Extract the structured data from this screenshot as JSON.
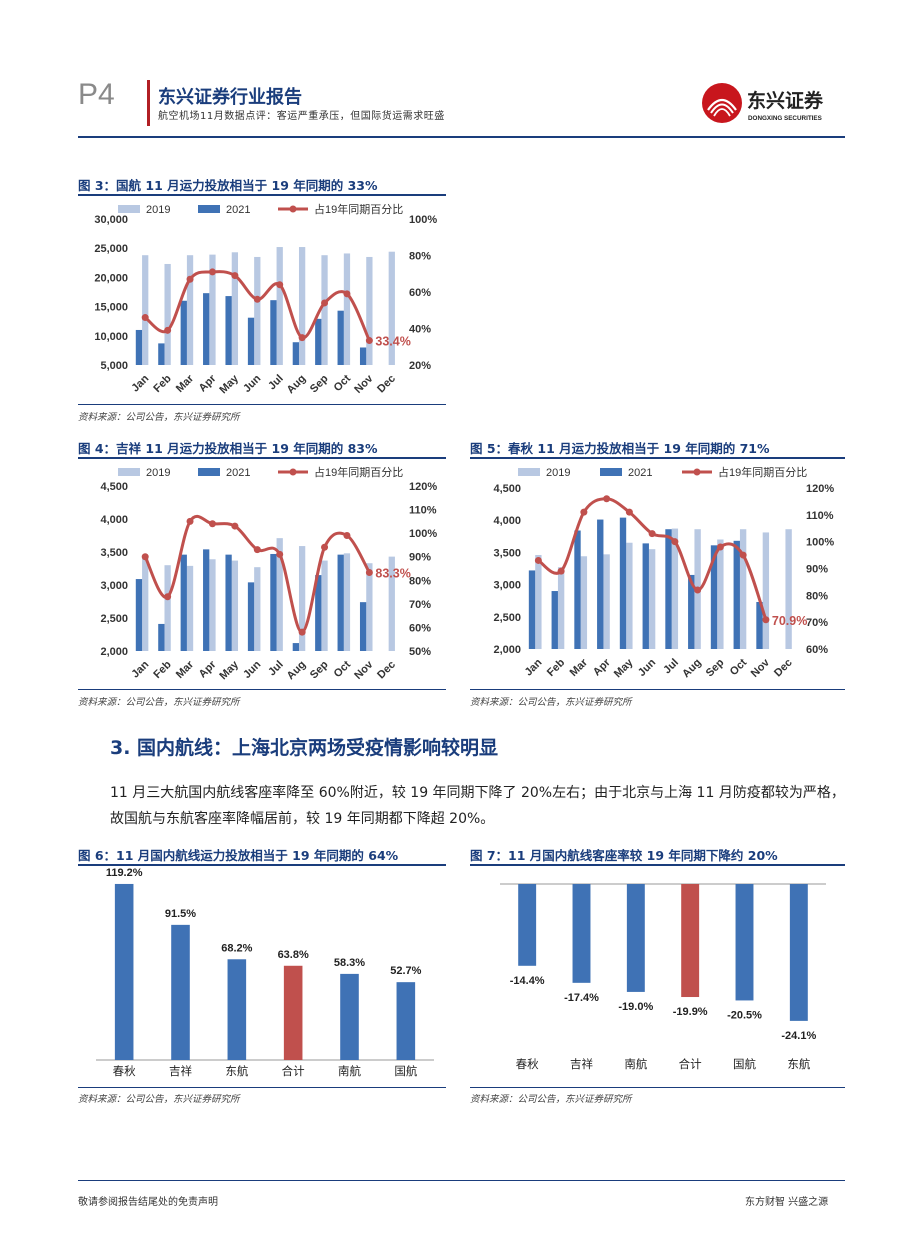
{
  "header": {
    "page_number": "P4",
    "report_title": "东兴证券行业报告",
    "subtitle": "航空机场11月数据点评：客运严重承压，但国际货运需求旺盛",
    "logo_text": "东兴证券",
    "logo_subtext": "DONGXING SECURITIES"
  },
  "colors": {
    "bar2019": "#b8c8e2",
    "bar2021": "#3f72b5",
    "line": "#c0504d",
    "navy": "#1a3d7c",
    "highlight": "#c0504d"
  },
  "fig3": {
    "title": "图 3：国航 11 月运力投放相当于 19 年同期的 33%",
    "source": "资料来源：公司公告，东兴证券研究所",
    "chart_data": {
      "type": "bar",
      "categories": [
        "Jan",
        "Feb",
        "Mar",
        "Apr",
        "May",
        "Jun",
        "Jul",
        "Aug",
        "Sep",
        "Oct",
        "Nov",
        "Dec"
      ],
      "series": [
        {
          "name": "2019",
          "values": [
            23800,
            22300,
            23800,
            23900,
            24300,
            23500,
            25200,
            25200,
            23800,
            24100,
            23500,
            24400
          ]
        },
        {
          "name": "2021",
          "values": [
            11000,
            8700,
            16000,
            17300,
            16800,
            13100,
            16100,
            8900,
            12900,
            14300,
            8000,
            null
          ]
        },
        {
          "name": "占19年同期百分比",
          "axis": "right",
          "values": [
            46,
            39,
            67,
            71,
            69,
            56,
            64,
            35,
            54,
            59,
            33.4,
            null
          ]
        }
      ],
      "ylim": [
        5000,
        30000
      ],
      "y_ticks": [
        "5,000",
        "10,000",
        "15,000",
        "20,000",
        "25,000",
        "30,000"
      ],
      "y2lim": [
        20,
        100
      ],
      "y2_ticks": [
        "20%",
        "40%",
        "60%",
        "80%",
        "100%"
      ],
      "annotation": "33.4%",
      "legend": "top"
    }
  },
  "fig4": {
    "title": "图 4：吉祥 11 月运力投放相当于 19 年同期的 83%",
    "source": "资料来源：公司公告，东兴证券研究所",
    "chart_data": {
      "type": "bar",
      "categories": [
        "Jan",
        "Feb",
        "Mar",
        "Apr",
        "May",
        "Jun",
        "Jul",
        "Aug",
        "Sep",
        "Oct",
        "Nov",
        "Dec"
      ],
      "series": [
        {
          "name": "2019",
          "values": [
            3420,
            3300,
            3290,
            3390,
            3370,
            3270,
            3710,
            3590,
            3370,
            3480,
            3330,
            3430
          ]
        },
        {
          "name": "2021",
          "values": [
            3090,
            2410,
            3460,
            3540,
            3460,
            3040,
            3470,
            2120,
            3150,
            3460,
            2740,
            null
          ]
        },
        {
          "name": "占19年同期百分比",
          "axis": "right",
          "values": [
            90,
            73,
            105,
            104,
            103,
            93,
            91,
            58,
            94,
            99,
            83.3,
            null
          ]
        }
      ],
      "ylim": [
        2000,
        4500
      ],
      "y_ticks": [
        "2,000",
        "2,500",
        "3,000",
        "3,500",
        "4,000",
        "4,500"
      ],
      "y2lim": [
        50,
        120
      ],
      "y2_ticks": [
        "50%",
        "60%",
        "70%",
        "80%",
        "90%",
        "100%",
        "110%",
        "120%"
      ],
      "annotation": "83.3%",
      "legend": "top"
    }
  },
  "fig5": {
    "title": "图 5：春秋 11 月运力投放相当于 19 年同期的 71%",
    "source": "资料来源：公司公告，东兴证券研究所",
    "chart_data": {
      "type": "bar",
      "categories": [
        "Jan",
        "Feb",
        "Mar",
        "Apr",
        "May",
        "Jun",
        "Jul",
        "Aug",
        "Sep",
        "Oct",
        "Nov",
        "Dec"
      ],
      "series": [
        {
          "name": "2019",
          "values": [
            3460,
            3270,
            3440,
            3470,
            3650,
            3550,
            3870,
            3860,
            3700,
            3860,
            3810,
            3860
          ]
        },
        {
          "name": "2021",
          "values": [
            3220,
            2900,
            3840,
            4010,
            4040,
            3640,
            3860,
            3150,
            3610,
            3680,
            2730,
            null
          ]
        },
        {
          "name": "占19年同期百分比",
          "axis": "right",
          "values": [
            93,
            89,
            111,
            116,
            111,
            103,
            100,
            82,
            98,
            95,
            70.9,
            null
          ]
        }
      ],
      "ylim": [
        2000,
        4500
      ],
      "y_ticks": [
        "2,000",
        "2,500",
        "3,000",
        "3,500",
        "4,000",
        "4,500"
      ],
      "y2lim": [
        60,
        120
      ],
      "y2_ticks": [
        "60%",
        "70%",
        "80%",
        "90%",
        "100%",
        "110%",
        "120%"
      ],
      "annotation": "70.9%",
      "legend": "top"
    }
  },
  "section": {
    "title": "3. 国内航线：上海北京两场受疫情影响较明显",
    "paragraph": "11 月三大航国内航线客座率降至 60%附近，较 19 年同期下降了 20%左右；由于北京与上海 11 月防疫都较为严格，故国航与东航客座率降幅居前，较 19 年同期都下降超 20%。"
  },
  "fig6": {
    "title": "图 6：11 月国内航线运力投放相当于 19 年同期的 64%",
    "source": "资料来源：公司公告，东兴证券研究所",
    "chart_data": {
      "type": "bar",
      "categories": [
        "春秋",
        "吉祥",
        "东航",
        "合计",
        "南航",
        "国航"
      ],
      "values": [
        119.2,
        91.5,
        68.2,
        63.8,
        58.3,
        52.7
      ],
      "labels": [
        "119.2%",
        "91.5%",
        "68.2%",
        "63.8%",
        "58.3%",
        "52.7%"
      ],
      "highlight_index": 3,
      "ylim": [
        0,
        130
      ]
    }
  },
  "fig7": {
    "title": "图 7：11 月国内航线客座率较 19 年同期下降约 20%",
    "source": "资料来源：公司公告，东兴证券研究所",
    "chart_data": {
      "type": "bar",
      "categories": [
        "春秋",
        "吉祥",
        "南航",
        "合计",
        "国航",
        "东航"
      ],
      "values": [
        -14.4,
        -17.4,
        -19.0,
        -19.9,
        -20.5,
        -24.1
      ],
      "labels": [
        "-14.4%",
        "-17.4%",
        "-19.0%",
        "-19.9%",
        "-20.5%",
        "-24.1%"
      ],
      "highlight_index": 3,
      "ylim": [
        -25,
        0
      ]
    }
  },
  "footer": {
    "left": "敬请参阅报告结尾处的免责声明",
    "right": "东方财智 兴盛之源"
  }
}
